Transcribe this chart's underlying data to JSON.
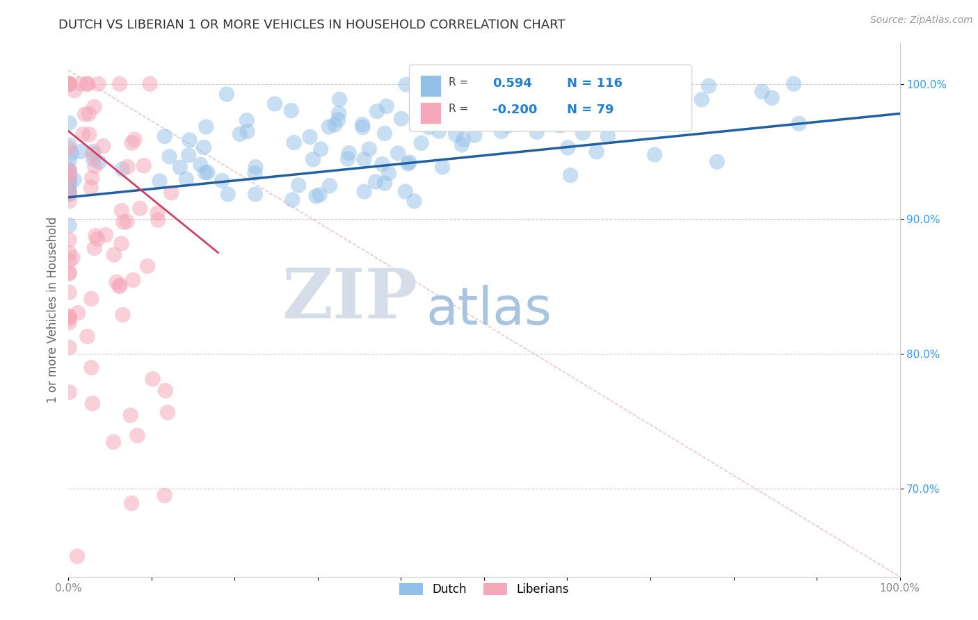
{
  "title": "DUTCH VS LIBERIAN 1 OR MORE VEHICLES IN HOUSEHOLD CORRELATION CHART",
  "source_text": "Source: ZipAtlas.com",
  "ylabel": "1 or more Vehicles in Household",
  "xlim": [
    0.0,
    1.0
  ],
  "ylim": [
    0.635,
    1.03
  ],
  "yticks": [
    0.7,
    0.8,
    0.9,
    1.0
  ],
  "ytick_labels": [
    "70.0%",
    "80.0%",
    "90.0%",
    "100.0%"
  ],
  "xticks": [
    0.0,
    0.1,
    0.2,
    0.3,
    0.4,
    0.5,
    0.6,
    0.7,
    0.8,
    0.9,
    1.0
  ],
  "xtick_labels": [
    "0.0%",
    "",
    "",
    "",
    "",
    "",
    "",
    "",
    "",
    "",
    "100.0%"
  ],
  "dutch_R": 0.594,
  "dutch_N": 116,
  "liberian_R": -0.2,
  "liberian_N": 79,
  "dutch_color": "#93c0e8",
  "liberian_color": "#f5a8ba",
  "dutch_line_color": "#2060a0",
  "liberian_line_color": "#d04060",
  "watermark_ZIP_color": "#d5dde8",
  "watermark_atlas_color": "#a8c4e0",
  "legend_color": "#2080d0",
  "background_color": "#ffffff",
  "grid_color": "#cccccc",
  "title_color": "#333333",
  "axis_label_color": "#666666",
  "ytick_color": "#3399ff",
  "source_color": "#999999",
  "ref_line_color": "#e8a0a8",
  "dutch_trend_x0": 0.0,
  "dutch_trend_x1": 1.0,
  "dutch_trend_y0": 0.916,
  "dutch_trend_y1": 0.978,
  "lib_trend_x0": 0.0,
  "lib_trend_x1": 0.18,
  "lib_trend_y0": 0.965,
  "lib_trend_y1": 0.875
}
